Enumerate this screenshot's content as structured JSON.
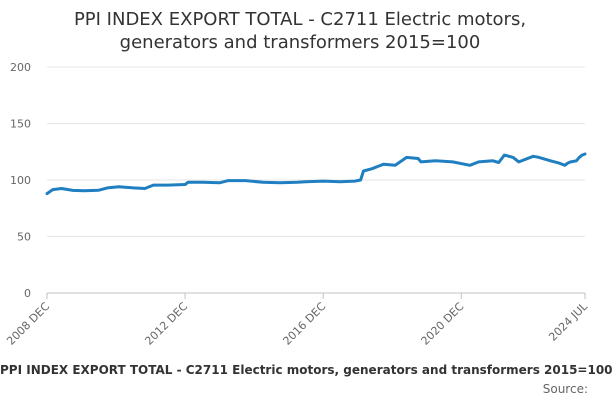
{
  "title_lines": [
    "PPI INDEX EXPORT TOTAL - C2711 Electric motors,",
    "generators and transformers 2015=100"
  ],
  "source_label": "Source:",
  "chart_data": {
    "type": "line",
    "title": "PPI INDEX EXPORT TOTAL - C2711 Electric motors, generators and transformers 2015=100",
    "xlabel": "",
    "ylabel": "",
    "x_tick_labels": [
      "2008 DEC",
      "2012 DEC",
      "2016 DEC",
      "2020 DEC",
      "2024 JUL"
    ],
    "x_tick_dates": [
      "2008-12",
      "2012-12",
      "2016-12",
      "2020-12",
      "2024-07"
    ],
    "xlim": [
      "2008-12",
      "2024-07"
    ],
    "y_ticks": [
      0,
      50,
      100,
      150,
      200
    ],
    "ylim": [
      0,
      200
    ],
    "grid": true,
    "legend_position": "bottom",
    "line_color": "#1f7fc1",
    "series": [
      {
        "name": "PPI INDEX EXPORT TOTAL - C2711 Electric motors, generators and transformers 2015=100",
        "points": [
          [
            "2008-12",
            88.0
          ],
          [
            "2009-02",
            91.5
          ],
          [
            "2009-05",
            92.5
          ],
          [
            "2009-09",
            90.8
          ],
          [
            "2010-01",
            90.5
          ],
          [
            "2010-06",
            91.0
          ],
          [
            "2010-09",
            93.0
          ],
          [
            "2011-01",
            94.0
          ],
          [
            "2011-06",
            93.0
          ],
          [
            "2011-10",
            92.5
          ],
          [
            "2012-01",
            95.5
          ],
          [
            "2012-06",
            95.5
          ],
          [
            "2012-12",
            96.0
          ],
          [
            "2013-01",
            98.0
          ],
          [
            "2013-06",
            98.0
          ],
          [
            "2013-12",
            97.5
          ],
          [
            "2014-03",
            99.5
          ],
          [
            "2014-09",
            99.5
          ],
          [
            "2015-03",
            98.0
          ],
          [
            "2015-09",
            97.5
          ],
          [
            "2016-03",
            98.0
          ],
          [
            "2016-06",
            98.5
          ],
          [
            "2016-12",
            99.0
          ],
          [
            "2017-06",
            98.5
          ],
          [
            "2017-11",
            99.0
          ],
          [
            "2018-01",
            100.0
          ],
          [
            "2018-02",
            108.0
          ],
          [
            "2018-05",
            110.0
          ],
          [
            "2018-09",
            114.0
          ],
          [
            "2019-01",
            113.0
          ],
          [
            "2019-05",
            120.0
          ],
          [
            "2019-09",
            119.0
          ],
          [
            "2019-10",
            116.0
          ],
          [
            "2020-03",
            117.0
          ],
          [
            "2020-09",
            116.0
          ],
          [
            "2021-03",
            113.0
          ],
          [
            "2021-06",
            116.0
          ],
          [
            "2021-11",
            117.0
          ],
          [
            "2022-01",
            115.5
          ],
          [
            "2022-03",
            122.0
          ],
          [
            "2022-06",
            120.0
          ],
          [
            "2022-08",
            116.0
          ],
          [
            "2023-01",
            121.0
          ],
          [
            "2023-03",
            120.0
          ],
          [
            "2023-07",
            117.0
          ],
          [
            "2023-10",
            115.0
          ],
          [
            "2023-12",
            113.0
          ],
          [
            "2024-01",
            115.0
          ],
          [
            "2024-02",
            116.0
          ],
          [
            "2024-03",
            116.5
          ],
          [
            "2024-04",
            117.0
          ],
          [
            "2024-05",
            120.0
          ],
          [
            "2024-06",
            122.0
          ],
          [
            "2024-07",
            123.0
          ]
        ]
      }
    ]
  }
}
